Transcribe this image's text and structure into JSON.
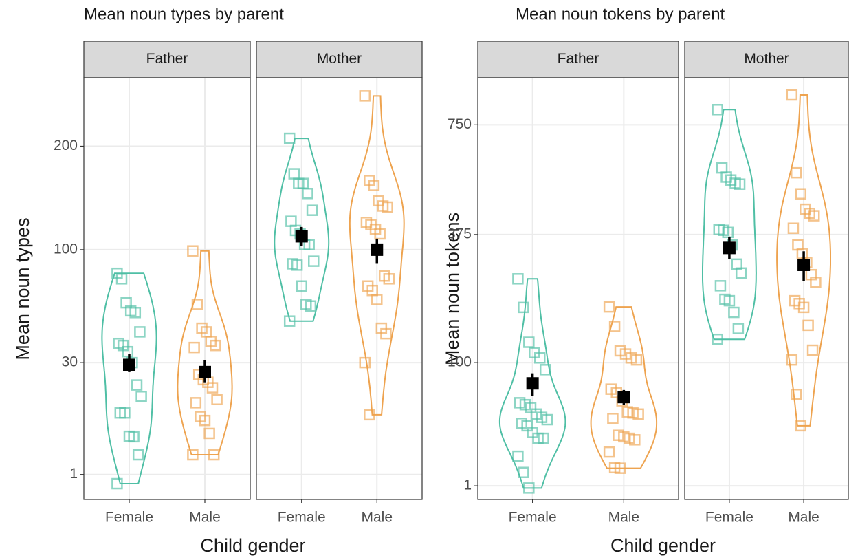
{
  "chart_data": [
    {
      "type": "violin",
      "title": "Mean noun types by parent",
      "y_label": "Mean noun types",
      "x_label": "Child gender",
      "yscale": "sqrt",
      "ylim": [
        0,
        285
      ],
      "yticks": [
        1,
        30,
        100,
        200
      ],
      "grid": true,
      "categories": [
        "Female",
        "Male"
      ],
      "facets": [
        {
          "label": "Father",
          "series": [
            {
              "color": "#4fbfa5",
              "values": [
                82,
                78,
                62,
                57,
                56,
                45,
                39,
                38,
                35,
                30,
                21,
                17,
                12,
                12,
                6.4,
                6.3,
                3.2,
                0.4
              ],
              "mean": 29,
              "ci": [
                26,
                34
              ]
            },
            {
              "color": "#eea34f",
              "values": [
                99,
                61,
                47,
                45,
                40,
                38,
                37,
                25,
                23,
                22,
                20,
                16,
                15,
                11,
                10,
                7,
                3.2,
                3.2
              ],
              "mean": 26,
              "ci": [
                22,
                31
              ]
            }
          ]
        },
        {
          "label": "Mother",
          "series": [
            {
              "color": "#4fbfa5",
              "values": [
                209,
                170,
                160,
                160,
                150,
                134,
                124,
                116,
                113,
                104,
                104,
                91,
                89,
                88,
                73,
                61,
                60,
                51
              ],
              "mean": 111,
              "ci": [
                103,
                119
              ]
            },
            {
              "color": "#eea34f",
              "values": [
                261,
                163,
                158,
                143,
                138,
                137,
                123,
                121,
                117,
                113,
                80,
                78,
                73,
                70,
                64,
                47,
                44,
                30,
                11.5
              ],
              "mean": 100,
              "ci": [
                89,
                109
              ]
            }
          ]
        }
      ]
    },
    {
      "type": "violin",
      "title": "Mean noun tokens by parent",
      "y_label": "Mean noun tokens",
      "x_label": "Child gender",
      "yscale": "sqrt",
      "ylim": [
        0,
        950
      ],
      "yticks": [
        1,
        100,
        375,
        750
      ],
      "grid": true,
      "categories": [
        "Female",
        "Male"
      ],
      "facets": [
        {
          "label": "Father",
          "series": [
            {
              "color": "#4fbfa5",
              "values": [
                260,
                197,
                132,
                115,
                107,
                90,
                50,
                48,
                45,
                39,
                36,
                34,
                31,
                29,
                24,
                20,
                20,
                10,
                3.9,
                0.7
              ],
              "mean": 72,
              "ci": [
                57,
                85
              ]
            },
            {
              "color": "#eea34f",
              "values": [
                198,
                160,
                118,
                113,
                107,
                104,
                65,
                61,
                52,
                41,
                40,
                39,
                35,
                22,
                21,
                20,
                19,
                12,
                5.4,
                5.2
              ],
              "mean": 56,
              "ci": [
                48,
                64
              ]
            }
          ]
        },
        {
          "label": "Mother",
          "series": [
            {
              "color": "#4fbfa5",
              "values": [
                812,
                587,
                555,
                545,
                534,
                531,
                389,
                387,
                381,
                346,
                296,
                274,
                244,
                214,
                211,
                187,
                156,
                137
              ],
              "mean": 338,
              "ci": [
                308,
                369
              ]
            },
            {
              "color": "#eea34f",
              "values": [
                874,
                570,
                499,
                450,
                437,
                430,
                393,
                346,
                323,
                300,
                270,
                252,
                211,
                205,
                197,
                162,
                119,
                104,
                59,
                29
              ],
              "mean": 294,
              "ci": [
                255,
                329
              ]
            }
          ]
        }
      ]
    }
  ]
}
